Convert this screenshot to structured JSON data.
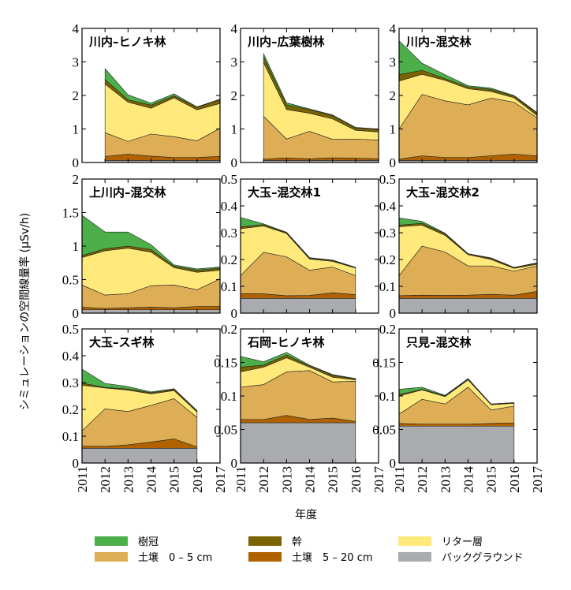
{
  "chart_data": {
    "type": "area",
    "stacked": true,
    "ylabel": "シミュレーションの空間線量率 (μSv/h)",
    "xlabel": "年度",
    "x_ticks": [
      "2011",
      "2012",
      "2013",
      "2014",
      "2015",
      "2016",
      "2017"
    ],
    "xlim": [
      2011,
      2017
    ],
    "grid": false,
    "legend_placement": "bottom",
    "layers": [
      {
        "key": "bg",
        "name": "バックグラウンド",
        "color": "#a9abae"
      },
      {
        "key": "s520",
        "name": "土壌　5 – 20 cm",
        "color": "#b06200"
      },
      {
        "key": "s05",
        "name": "土壌　0 – 5 cm",
        "color": "#ddae56"
      },
      {
        "key": "litter",
        "name": "リター層",
        "color": "#ffe97a"
      },
      {
        "key": "trunk",
        "name": "幹",
        "color": "#7a6300"
      },
      {
        "key": "canopy",
        "name": "樹冠",
        "color": "#4caf4a"
      }
    ],
    "legend_order": [
      "canopy",
      "trunk",
      "litter",
      "s05",
      "s520",
      "bg"
    ],
    "panels": [
      {
        "title": "川内–ヒノキ林",
        "ylim": [
          0,
          4
        ],
        "yticks": [
          "0",
          "1",
          "2",
          "3",
          "4"
        ],
        "x": [
          2012,
          2013,
          2014,
          2015,
          2016,
          2017
        ],
        "bg": [
          0.06,
          0.06,
          0.06,
          0.06,
          0.06,
          0.06
        ],
        "s520": [
          0.12,
          0.19,
          0.13,
          0.09,
          0.09,
          0.12
        ],
        "s05": [
          0.71,
          0.38,
          0.66,
          0.62,
          0.5,
          0.84
        ],
        "litter": [
          1.45,
          1.17,
          0.77,
          1.16,
          0.92,
          0.74
        ],
        "trunk": [
          0.13,
          0.07,
          0.09,
          0.06,
          0.08,
          0.11
        ],
        "canopy": [
          0.33,
          0.15,
          0.06,
          0.06,
          0.01,
          0.02
        ]
      },
      {
        "title": "川内–広葉樹林",
        "ylim": [
          0,
          4
        ],
        "yticks": [
          "0",
          "1",
          "2",
          "3",
          "4"
        ],
        "x": [
          2012,
          2013,
          2014,
          2015,
          2016,
          2017
        ],
        "bg": [
          0.06,
          0.06,
          0.06,
          0.06,
          0.06,
          0.06
        ],
        "s520": [
          0.04,
          0.08,
          0.05,
          0.08,
          0.07,
          0.05
        ],
        "s05": [
          1.28,
          0.56,
          0.82,
          0.55,
          0.57,
          0.56
        ],
        "litter": [
          1.6,
          0.88,
          0.54,
          0.61,
          0.26,
          0.24
        ],
        "trunk": [
          0.17,
          0.14,
          0.11,
          0.1,
          0.07,
          0.08
        ],
        "canopy": [
          0.1,
          0.06,
          0.02,
          0.02,
          0.02,
          0.01
        ]
      },
      {
        "title": "川内–混交林",
        "ylim": [
          0,
          4
        ],
        "yticks": [
          "0",
          "1",
          "2",
          "3",
          "4"
        ],
        "x": [
          2011,
          2012,
          2013,
          2014,
          2015,
          2016,
          2017
        ],
        "bg": [
          0.06,
          0.06,
          0.06,
          0.06,
          0.06,
          0.06,
          0.06
        ],
        "s520": [
          0.04,
          0.14,
          0.09,
          0.09,
          0.14,
          0.19,
          0.14
        ],
        "s05": [
          0.9,
          1.83,
          1.69,
          1.57,
          1.72,
          1.55,
          1.13
        ],
        "litter": [
          1.43,
          0.6,
          0.61,
          0.48,
          0.2,
          0.13,
          0.07
        ],
        "trunk": [
          0.19,
          0.12,
          0.05,
          0.05,
          0.06,
          0.05,
          0.07
        ],
        "canopy": [
          1.01,
          0.21,
          0.12,
          0.04,
          0.04,
          0.02,
          0.02
        ]
      },
      {
        "title": "上川内–混交林",
        "ylim": [
          0,
          2
        ],
        "yticks": [
          "0",
          "0.5",
          "1",
          "1.5",
          "2"
        ],
        "x": [
          2011,
          2012,
          2013,
          2014,
          2015,
          2016,
          2017
        ],
        "bg": [
          0.05,
          0.05,
          0.05,
          0.05,
          0.05,
          0.05,
          0.05
        ],
        "s520": [
          0.04,
          0.02,
          0.03,
          0.04,
          0.03,
          0.05,
          0.05
        ],
        "s05": [
          0.33,
          0.2,
          0.21,
          0.32,
          0.34,
          0.25,
          0.41
        ],
        "litter": [
          0.41,
          0.66,
          0.68,
          0.5,
          0.26,
          0.26,
          0.13
        ],
        "trunk": [
          0.03,
          0.03,
          0.03,
          0.04,
          0.02,
          0.03,
          0.03
        ],
        "canopy": [
          0.6,
          0.25,
          0.21,
          0.07,
          0.02,
          0.02,
          0.02
        ]
      },
      {
        "title": "大玉–混交林1",
        "ylim": [
          0,
          0.5
        ],
        "yticks": [
          "0",
          "0.1",
          "0.2",
          "0.3",
          "0.4",
          "0.5"
        ],
        "x": [
          2011,
          2012,
          2013,
          2014,
          2015,
          2016
        ],
        "bg": [
          0.055,
          0.055,
          0.055,
          0.055,
          0.055,
          0.055
        ],
        "s520": [
          0.018,
          0.017,
          0.01,
          0.011,
          0.021,
          0.014
        ],
        "s05": [
          0.067,
          0.155,
          0.145,
          0.094,
          0.096,
          0.071
        ],
        "litter": [
          0.175,
          0.098,
          0.087,
          0.042,
          0.021,
          0.028
        ],
        "trunk": [
          0.007,
          0.005,
          0.003,
          0.003,
          0.003,
          0.002
        ],
        "canopy": [
          0.035,
          0.003,
          0.002,
          0.002,
          0.002,
          0.001
        ]
      },
      {
        "title": "大玉–混交林2",
        "ylim": [
          0,
          0.5
        ],
        "yticks": [
          "0",
          "0.1",
          "0.2",
          "0.3",
          "0.4",
          "0.5"
        ],
        "x": [
          2011,
          2012,
          2013,
          2014,
          2015,
          2016,
          2017
        ],
        "bg": [
          0.055,
          0.055,
          0.055,
          0.055,
          0.055,
          0.055,
          0.055
        ],
        "s520": [
          0.01,
          0.012,
          0.011,
          0.012,
          0.015,
          0.012,
          0.026
        ],
        "s05": [
          0.075,
          0.183,
          0.162,
          0.109,
          0.106,
          0.09,
          0.095
        ],
        "litter": [
          0.182,
          0.078,
          0.062,
          0.042,
          0.024,
          0.01,
          0.006
        ],
        "trunk": [
          0.006,
          0.007,
          0.006,
          0.003,
          0.004,
          0.003,
          0.004
        ],
        "canopy": [
          0.027,
          0.007,
          0.002,
          0.001,
          0.002,
          0.001,
          0.002
        ]
      },
      {
        "title": "大玉–スギ林",
        "ylim": [
          0,
          0.5
        ],
        "yticks": [
          "0",
          "0.1",
          "0.2",
          "0.3",
          "0.4",
          "0.5"
        ],
        "x": [
          2011,
          2012,
          2013,
          2014,
          2015,
          2016
        ],
        "bg": [
          0.055,
          0.055,
          0.055,
          0.055,
          0.055,
          0.055
        ],
        "s520": [
          0.008,
          0.007,
          0.013,
          0.023,
          0.035,
          0.005
        ],
        "s05": [
          0.057,
          0.14,
          0.124,
          0.137,
          0.15,
          0.11
        ],
        "litter": [
          0.17,
          0.078,
          0.08,
          0.043,
          0.03,
          0.02
        ],
        "trunk": [
          0.008,
          0.002,
          0.004,
          0.004,
          0.005,
          0.005
        ],
        "canopy": [
          0.052,
          0.015,
          0.009,
          0.003,
          0.002,
          0.001
        ]
      },
      {
        "title": "石岡–ヒノキ林",
        "ylim": [
          0,
          0.2
        ],
        "yticks": [
          "0",
          "0.05",
          "0.1",
          "0.15",
          "0.2"
        ],
        "x": [
          2011,
          2012,
          2013,
          2014,
          2015,
          2016
        ],
        "bg": [
          0.06,
          0.06,
          0.06,
          0.06,
          0.06,
          0.06
        ],
        "s520": [
          0.005,
          0.005,
          0.011,
          0.005,
          0.007,
          0.002
        ],
        "s05": [
          0.048,
          0.052,
          0.065,
          0.073,
          0.054,
          0.06
        ],
        "litter": [
          0.023,
          0.026,
          0.021,
          0.005,
          0.007,
          0.002
        ],
        "trunk": [
          0.007,
          0.003,
          0.004,
          0.002,
          0.003,
          0.001
        ],
        "canopy": [
          0.016,
          0.005,
          0.004,
          0.001,
          0.001,
          0.001
        ]
      },
      {
        "title": "只見–混交林",
        "ylim": [
          0,
          0.2
        ],
        "yticks": [
          "0",
          "0.05",
          "0.1",
          "0.15",
          "0.2"
        ],
        "x": [
          2011,
          2012,
          2013,
          2014,
          2015,
          2016
        ],
        "bg": [
          0.055,
          0.055,
          0.055,
          0.055,
          0.055,
          0.055
        ],
        "s520": [
          0.004,
          0.003,
          0.003,
          0.003,
          0.004,
          0.005
        ],
        "s05": [
          0.014,
          0.037,
          0.03,
          0.055,
          0.02,
          0.025
        ],
        "litter": [
          0.027,
          0.014,
          0.011,
          0.011,
          0.008,
          0.004
        ],
        "trunk": [
          0.002,
          0.001,
          0.001,
          0.001,
          0.001,
          0.001
        ],
        "canopy": [
          0.008,
          0.003,
          0.001,
          0.001,
          0.0,
          0.0
        ]
      }
    ]
  }
}
